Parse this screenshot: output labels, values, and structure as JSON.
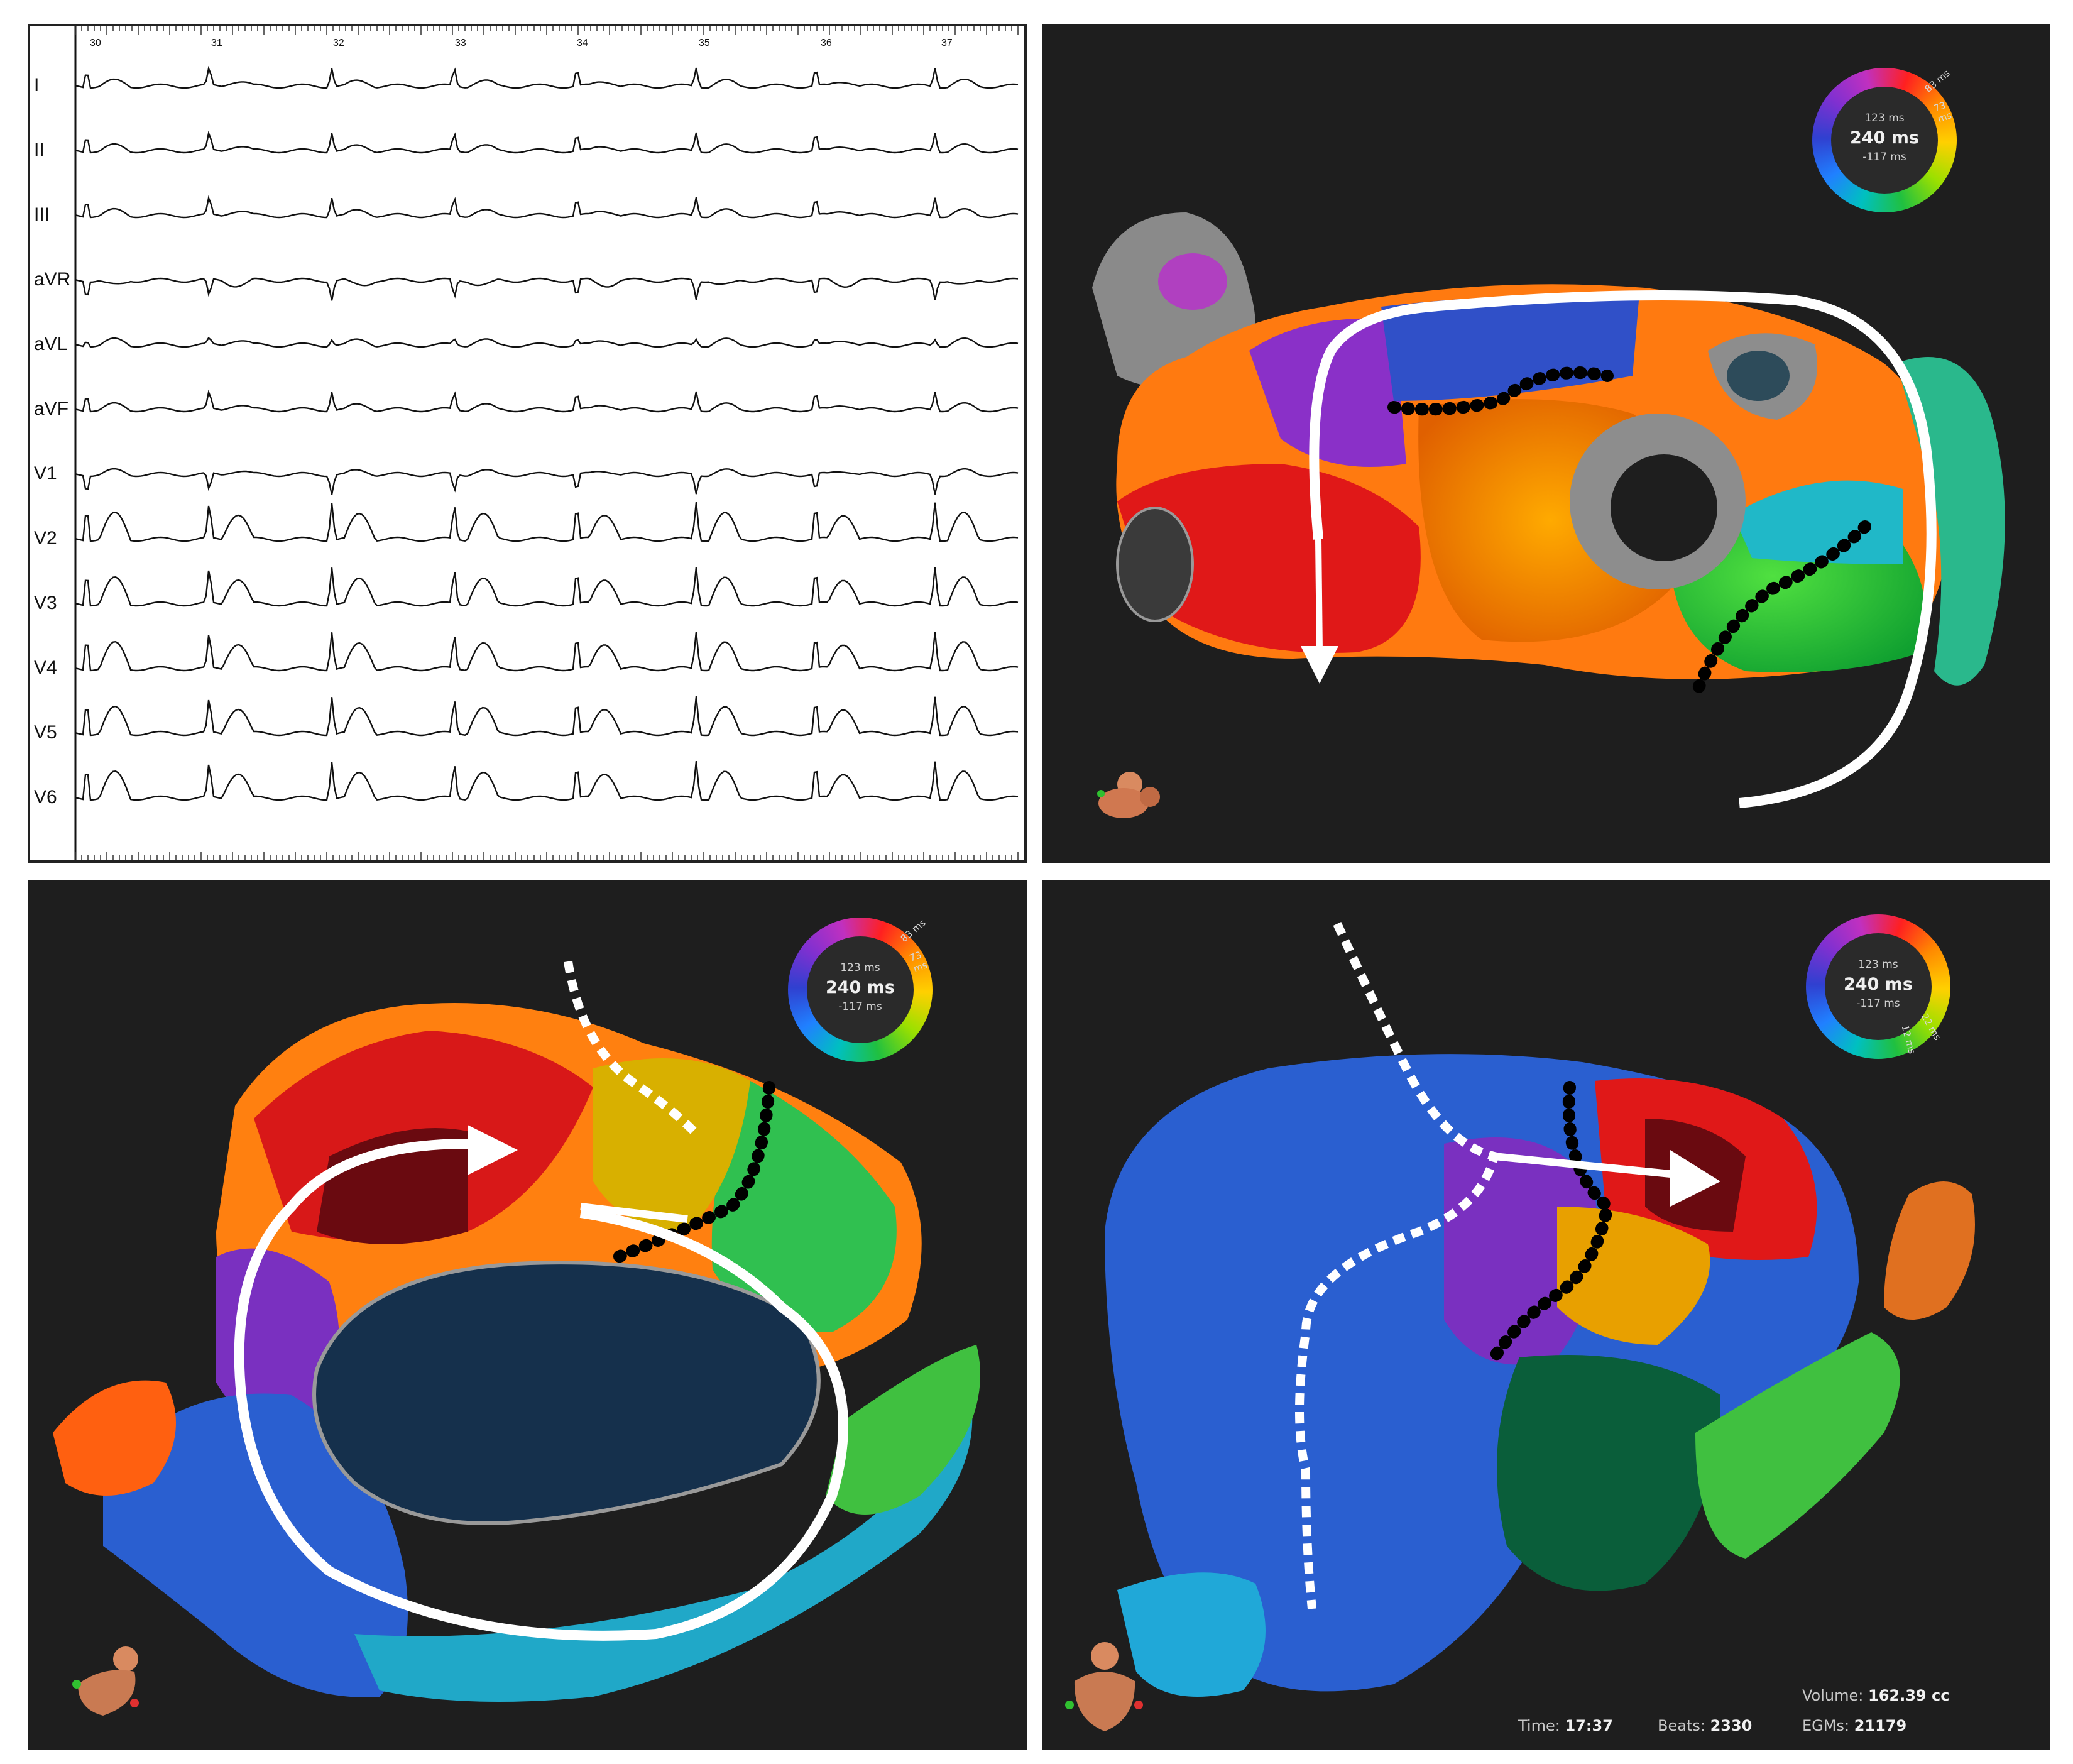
{
  "ecg": {
    "leads": [
      "I",
      "II",
      "III",
      "aVR",
      "aVL",
      "aVF",
      "V1",
      "V2",
      "V3",
      "V4",
      "V5",
      "V6"
    ],
    "seconds": [
      "30",
      "31",
      "32",
      "33",
      "34",
      "35",
      "36",
      "37"
    ]
  },
  "legends": {
    "top_right": {
      "center": "240 ms",
      "top": "123 ms",
      "bottom": "-117 ms",
      "mark1": "83 ms",
      "mark2": "73 ms"
    },
    "bottom_left": {
      "center": "240 ms",
      "top": "123 ms",
      "bottom": "-117 ms",
      "mark1": "83 ms",
      "mark2": "73 ms"
    },
    "bottom_right": {
      "center": "240 ms",
      "top": "123 ms",
      "bottom": "-117 ms",
      "mark1": "22 ms",
      "mark2": "12 ms"
    }
  },
  "stats": {
    "time_label": "Time:",
    "time_value": "17:37",
    "beats_label": "Beats:",
    "beats_value": "2330",
    "volume_label": "Volume:",
    "volume_value": "162.39 cc",
    "egms_label": "EGMs:",
    "egms_value": "21179"
  },
  "colors": {
    "panel_bg": "#1e1e1e",
    "map_scale": [
      "#ff2020",
      "#ff8a00",
      "#ffd000",
      "#20c040",
      "#00c0c0",
      "#2080ff",
      "#8030d0"
    ]
  }
}
